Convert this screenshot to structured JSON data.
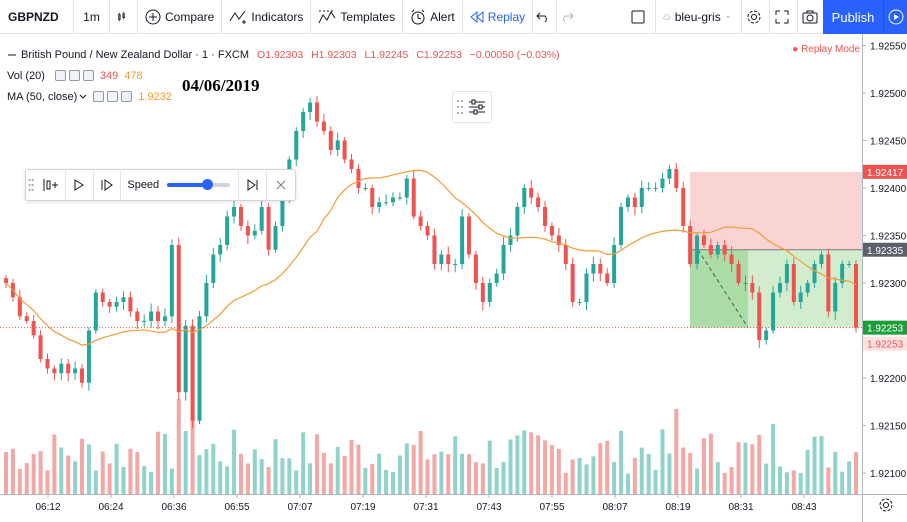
{
  "toolbar": {
    "symbol": "GBPNZD",
    "interval": "1m",
    "compare": "Compare",
    "indicators": "Indicators",
    "templates": "Templates",
    "alert": "Alert",
    "replay": "Replay",
    "layout_name": "bleu-gris",
    "publish": "Publish"
  },
  "legend": {
    "title": "British Pound / New Zealand Dollar · 1 · FXCM",
    "open": "O1.92303",
    "high": "H1.92303",
    "low": "L1.92245",
    "close": "C1.92253",
    "change": "−0.00050 (−0.03%)",
    "vol_label": "Vol (20)",
    "vol_value_1": "349",
    "vol_value_2": "478",
    "ma_label": "MA (50, close)",
    "ma_value": "1.9232",
    "replay_mode": "Replay Mode"
  },
  "annotation": {
    "date": "04/06/2019"
  },
  "speed_panel": {
    "label": "Speed",
    "speed_fraction": 0.55
  },
  "colors": {
    "up": "#26a69a",
    "down": "#ef5350",
    "up_vol": "#8fd3cb",
    "down_vol": "#f4a8a6",
    "ma": "#f39c33",
    "accent": "#2962ff",
    "stop_zone": "#f8c4c4",
    "target_zone": "#c5e8c0"
  },
  "chart_data": {
    "type": "candlestick",
    "y_ticks": [
      "1.92550",
      "1.92500",
      "1.92450",
      "1.92400",
      "1.92350",
      "1.92300",
      "1.92250",
      "1.92200",
      "1.92150",
      "1.92100"
    ],
    "x_ticks": [
      "06:12",
      "06:24",
      "06:36",
      "06:55",
      "07:07",
      "07:19",
      "07:31",
      "07:43",
      "07:55",
      "08:07",
      "08:19",
      "08:31",
      "08:43"
    ],
    "ylim": [
      1.9208,
      1.9256
    ],
    "price_labels": [
      {
        "value": "1.92417",
        "kind": "stop"
      },
      {
        "value": "1.92335",
        "kind": "entry"
      },
      {
        "value": "1.92253",
        "kind": "current"
      },
      {
        "value": "1.92253",
        "kind": "target"
      }
    ],
    "position": {
      "entry": 1.92335,
      "stop": 1.92417,
      "target": 1.92253,
      "start_time": "08:19"
    },
    "candles_close": [
      1.923,
      1.92285,
      1.92265,
      1.9226,
      1.92245,
      1.9222,
      1.9221,
      1.92205,
      1.92215,
      1.92205,
      1.9221,
      1.92195,
      1.9225,
      1.9229,
      1.9228,
      1.92275,
      1.9228,
      1.92285,
      1.9227,
      1.9226,
      1.9226,
      1.9227,
      1.9226,
      1.92265,
      1.9234,
      1.92185,
      1.92255,
      1.92155,
      1.92265,
      1.923,
      1.9233,
      1.9234,
      1.9237,
      1.9238,
      1.9236,
      1.9235,
      1.92355,
      1.9238,
      1.92335,
      1.9236,
      1.9239,
      1.9243,
      1.9246,
      1.9248,
      1.9249,
      1.9247,
      1.9246,
      1.9244,
      1.9245,
      1.9243,
      1.9242,
      1.924,
      1.924,
      1.9238,
      1.92385,
      1.92385,
      1.9239,
      1.9239,
      1.9241,
      1.9237,
      1.9236,
      1.9235,
      1.9232,
      1.9233,
      1.9232,
      1.9232,
      1.9237,
      1.9233,
      1.923,
      1.9228,
      1.923,
      1.9231,
      1.9234,
      1.9235,
      1.9238,
      1.924,
      1.9239,
      1.9238,
      1.9236,
      1.9235,
      1.9234,
      1.9232,
      1.9228,
      1.9228,
      1.9231,
      1.9232,
      1.9231,
      1.923,
      1.9234,
      1.9238,
      1.9239,
      1.9238,
      1.924,
      1.924,
      1.924,
      1.9241,
      1.9242,
      1.924,
      1.9236,
      1.9232,
      1.9235,
      1.9234,
      1.9233,
      1.9234,
      1.9233,
      1.9232,
      1.923,
      1.923,
      1.9229,
      1.9224,
      1.9225,
      1.9229,
      1.923,
      1.9232,
      1.9228,
      1.9229,
      1.923,
      1.9232,
      1.9233,
      1.9227,
      1.923,
      1.9232,
      1.9232,
      1.92253
    ],
    "volume_shape": "varies; spikes near 06:31 and 08:47"
  }
}
